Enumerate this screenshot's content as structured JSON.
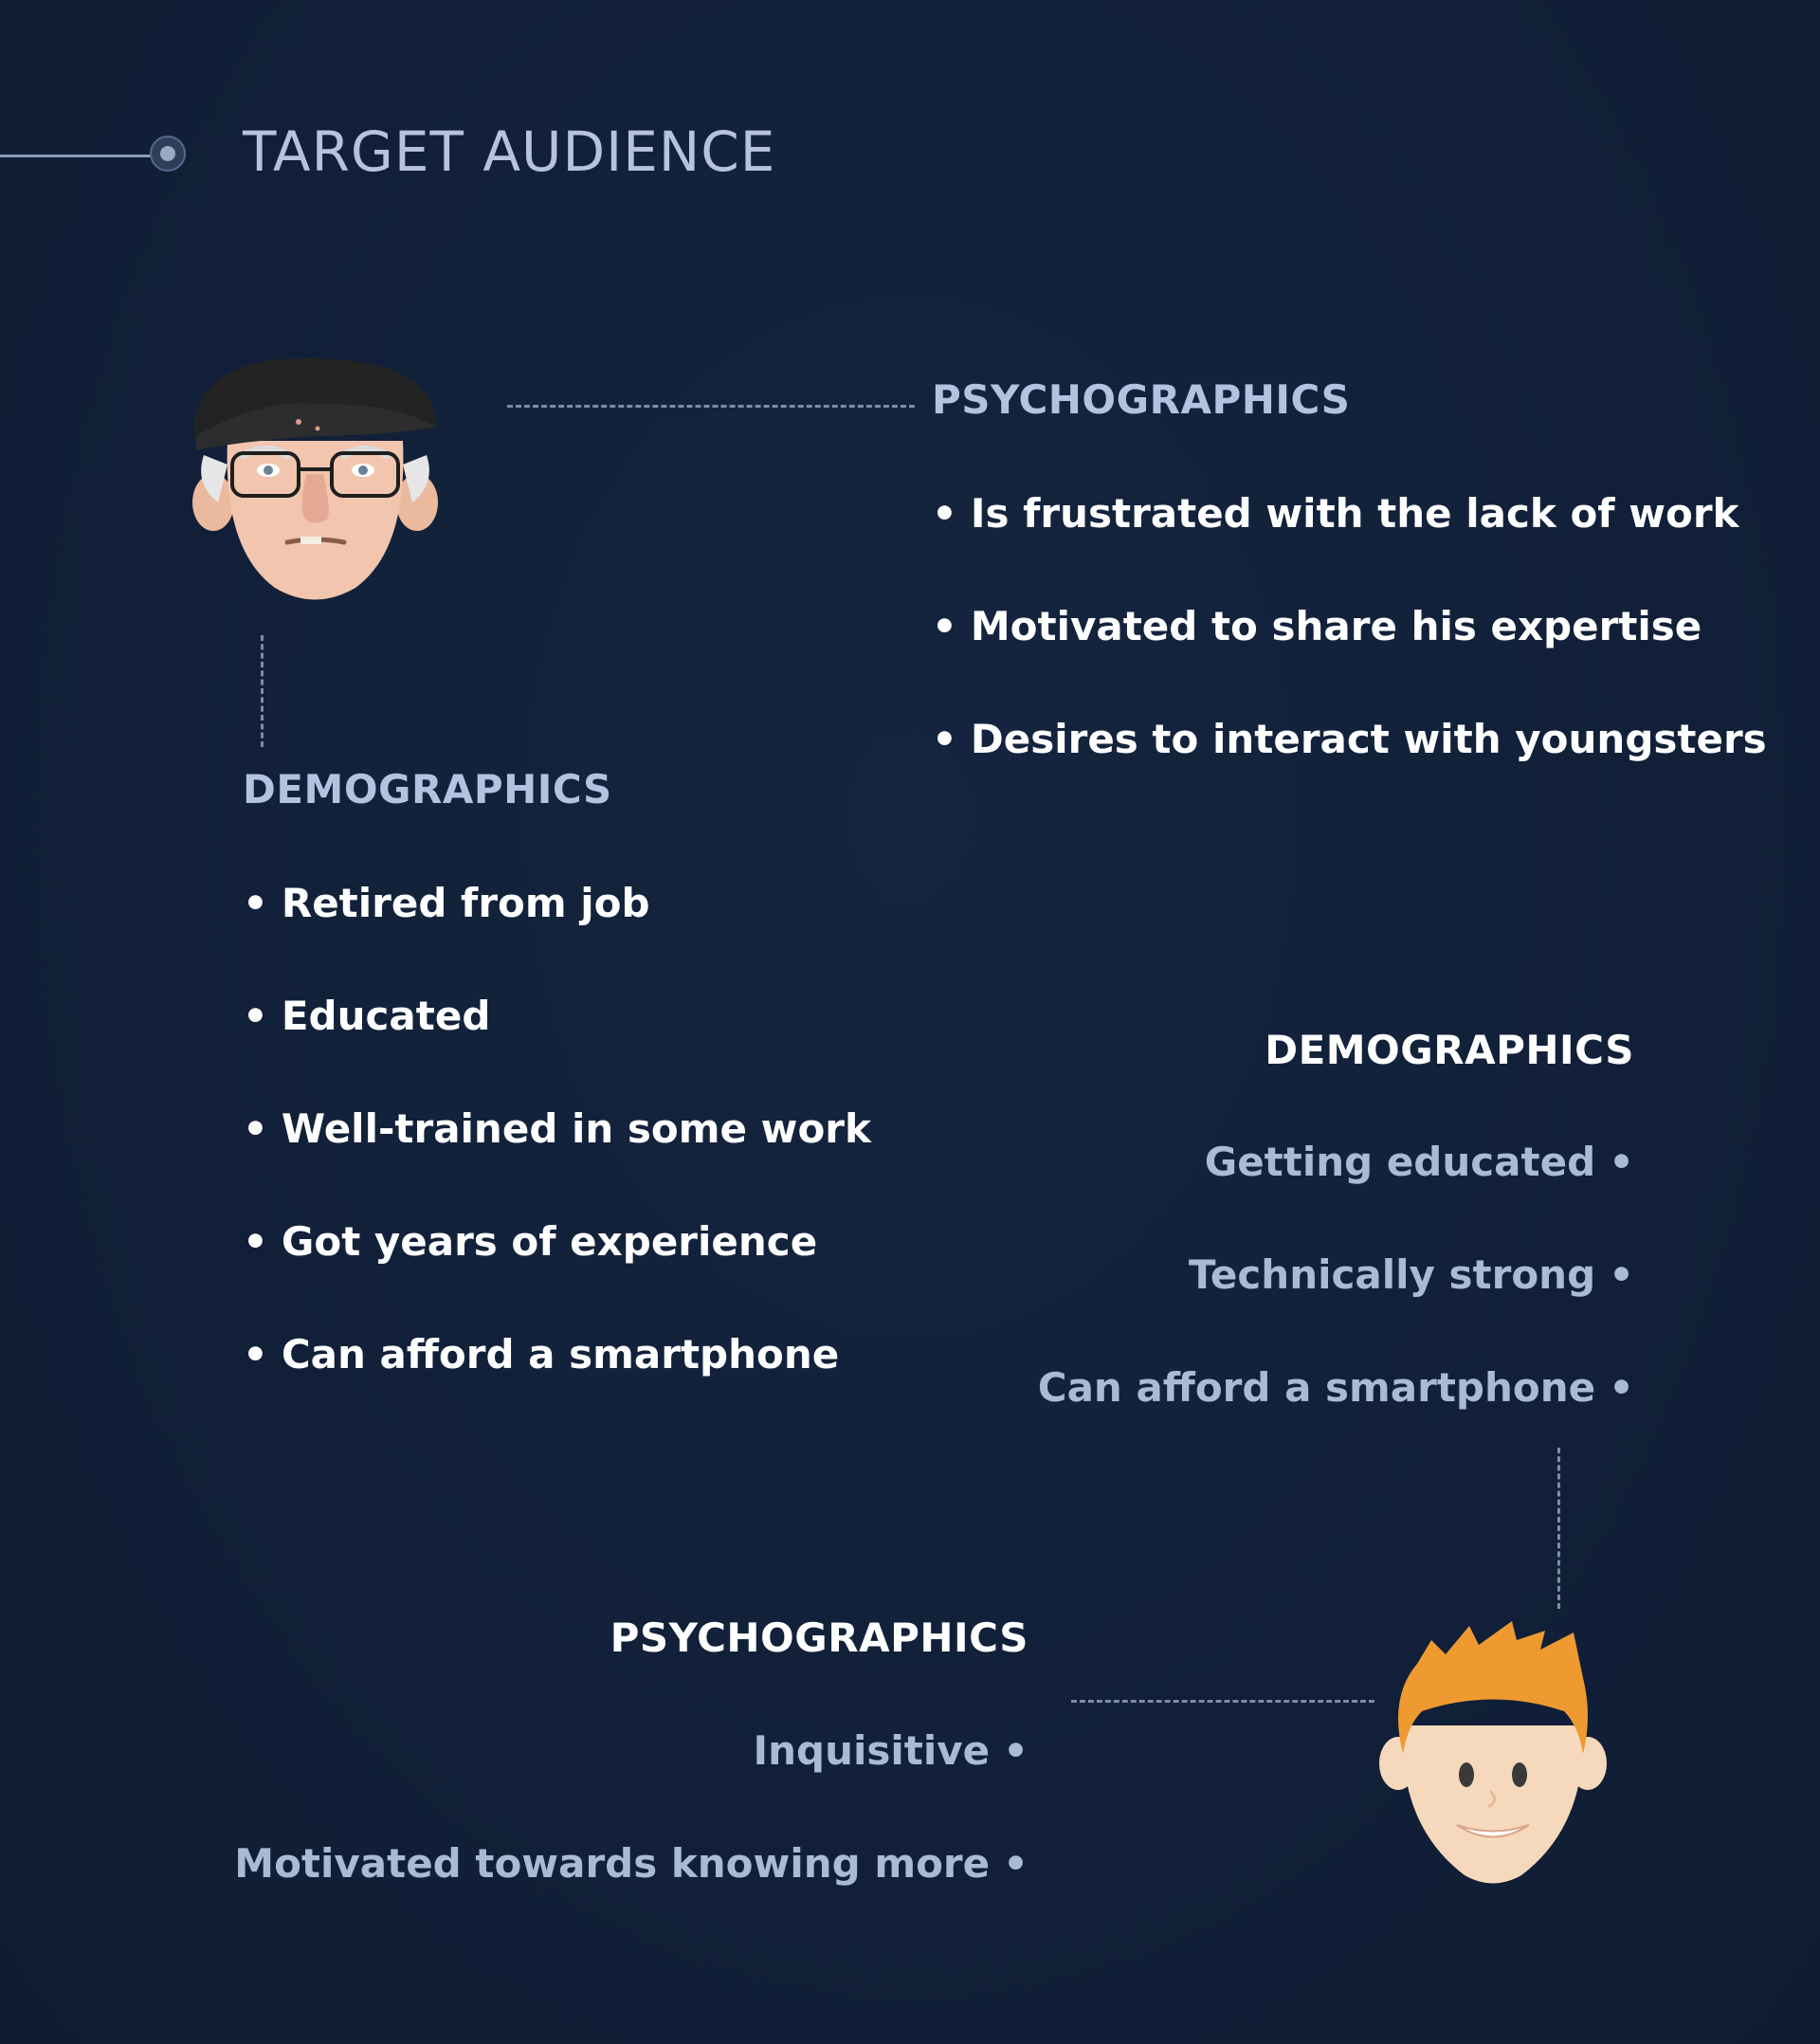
{
  "title": "TARGET AUDIENCE",
  "older_persona": {
    "avatar_icon": "elderly-man-face-icon",
    "psychographics": {
      "heading": "PSYCHOGRAPHICS",
      "items": [
        "Is frustrated with the lack of work",
        "Motivated to share his expertise",
        "Desires to interact with youngsters"
      ]
    },
    "demographics": {
      "heading": "DEMOGRAPHICS",
      "items": [
        "Retired from job",
        "Educated",
        "Well-trained in some work",
        "Got years of experience",
        "Can afford a smartphone"
      ]
    }
  },
  "younger_persona": {
    "avatar_icon": "young-man-face-icon",
    "demographics": {
      "heading": "DEMOGRAPHICS",
      "items": [
        "Getting educated",
        "Technically strong",
        "Can afford a smartphone"
      ]
    },
    "psychographics": {
      "heading": "PSYCHOGRAPHICS",
      "items": [
        "Inquisitive",
        "Motivated towards knowing more"
      ]
    }
  },
  "colors": {
    "background": "#122039",
    "heading_light": "#b4c2e2",
    "text_white": "#ffffff",
    "text_muted": "#a9b9d6",
    "hair_orange": "#ee9a30",
    "skin": "#f6d9bd"
  }
}
